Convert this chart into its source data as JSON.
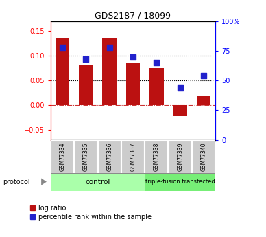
{
  "title": "GDS2187 / 18099",
  "samples": [
    "GSM77334",
    "GSM77335",
    "GSM77336",
    "GSM77337",
    "GSM77338",
    "GSM77339",
    "GSM77340"
  ],
  "log_ratio": [
    0.137,
    0.082,
    0.137,
    0.087,
    0.075,
    -0.022,
    0.018
  ],
  "percentile_rank_pct": [
    78,
    68,
    78,
    70,
    65,
    44,
    54
  ],
  "bar_color": "#bb1111",
  "dot_color": "#2222cc",
  "ylim_left": [
    -0.07,
    0.17
  ],
  "ylim_right": [
    0,
    100
  ],
  "yticks_left": [
    -0.05,
    0.0,
    0.05,
    0.1,
    0.15
  ],
  "yticks_right": [
    0,
    25,
    50,
    75,
    100
  ],
  "ytick_labels_right": [
    "0",
    "25",
    "50",
    "75",
    "100%"
  ],
  "hline_black1": 0.1,
  "hline_black2": 0.05,
  "hline_red": 0.0,
  "control_samples": 4,
  "protocol_control_label": "control",
  "protocol_transfected_label": "triple-fusion transfected",
  "legend_log_ratio": "log ratio",
  "legend_percentile": "percentile rank within the sample",
  "control_color": "#aaffaa",
  "transfected_color": "#77ee77",
  "tick_area_color": "#cccccc",
  "bar_width": 0.6
}
